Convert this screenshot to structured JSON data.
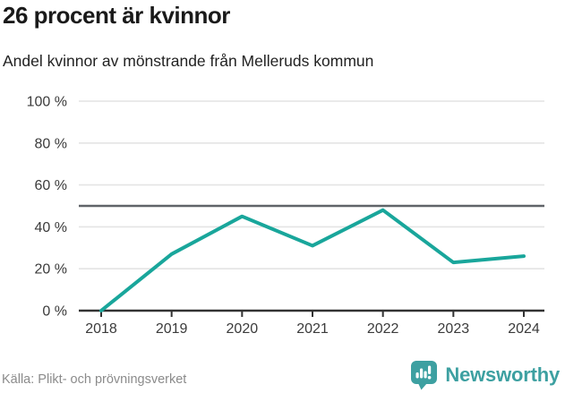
{
  "header": {
    "title": "26 procent är kvinnor",
    "subtitle": "Andel kvinnor av mönstrande från Melleruds kommun"
  },
  "chart_data": {
    "type": "line",
    "title": "26 procent är kvinnor",
    "subtitle": "Andel kvinnor av mönstrande från Melleruds kommun",
    "categories": [
      "2018",
      "2019",
      "2020",
      "2021",
      "2022",
      "2023",
      "2024"
    ],
    "series": [
      {
        "name": "Andel kvinnor av mönstrande",
        "values": [
          0,
          27,
          45,
          31,
          48,
          23,
          26
        ]
      }
    ],
    "unit": "%",
    "ylim": [
      0,
      100
    ],
    "yticks": [
      0,
      20,
      40,
      60,
      80,
      100
    ],
    "ytick_suffix": " %",
    "reference_line": {
      "value": 50
    },
    "grid": true,
    "legend": "none",
    "colors": {
      "line": "#19a69b",
      "reference_line": "#606468",
      "axis": "#333333",
      "grid": "#e4e4e4",
      "tick_label": "#3b3b3b"
    }
  },
  "footer": {
    "source": "Källa: Plikt- och prövningsverket",
    "brand": {
      "name": "Newsworthy",
      "icon": "newsworthy-logo-icon",
      "color": "#3da0a1"
    }
  }
}
